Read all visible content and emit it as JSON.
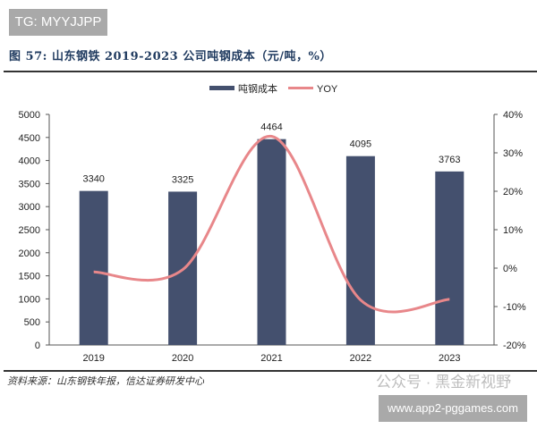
{
  "badge": "TG: MYYJJPP",
  "figure_title": "图 57:  山东钢铁 2019-2023 公司吨钢成本（元/吨，%）",
  "source": "资料来源：山东钢铁年报，信达证券研发中心",
  "watermark": "公众号 · 黑金新视野",
  "site": "www.app2-pggames.com",
  "chart_data": {
    "type": "bar+line",
    "categories": [
      "2019",
      "2020",
      "2021",
      "2022",
      "2023"
    ],
    "series": [
      {
        "name": "吨钢成本",
        "type": "bar",
        "axis": "left",
        "values": [
          3340,
          3325,
          4464,
          4095,
          3763
        ],
        "color": "#44506e"
      },
      {
        "name": "YOY",
        "type": "line",
        "axis": "right",
        "values": [
          -1,
          -0.4,
          34.3,
          -8.3,
          -8.1
        ],
        "color": "#e8878a"
      }
    ],
    "data_labels": [
      "3340",
      "3325",
      "4464",
      "4095",
      "3763"
    ],
    "left_axis": {
      "ylim": [
        0,
        5000
      ],
      "ticks": [
        "0",
        "500",
        "1000",
        "1500",
        "2000",
        "2500",
        "3000",
        "3500",
        "4000",
        "4500",
        "5000"
      ]
    },
    "right_axis": {
      "ylim": [
        -20,
        40
      ],
      "ticks": [
        "-20%",
        "-10%",
        "0%",
        "10%",
        "20%",
        "30%",
        "40%"
      ]
    },
    "legend": "top-center",
    "grid": false
  }
}
